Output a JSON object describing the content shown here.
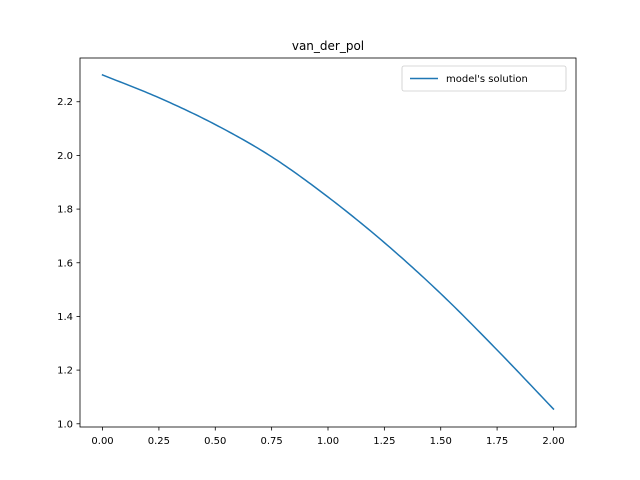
{
  "chart_data": {
    "type": "line",
    "title": "van_der_pol",
    "xlabel": "",
    "ylabel": "",
    "xlim": [
      -0.1,
      2.1
    ],
    "ylim": [
      0.988,
      2.363
    ],
    "xticks": [
      0.0,
      0.25,
      0.5,
      0.75,
      1.0,
      1.25,
      1.5,
      1.75,
      2.0
    ],
    "xtick_labels": [
      "0.00",
      "0.25",
      "0.50",
      "0.75",
      "1.00",
      "1.25",
      "1.50",
      "1.75",
      "2.00"
    ],
    "yticks": [
      1.0,
      1.2,
      1.4,
      1.6,
      1.8,
      2.0,
      2.2
    ],
    "ytick_labels": [
      "1.0",
      "1.2",
      "1.4",
      "1.6",
      "1.8",
      "2.0",
      "2.2"
    ],
    "grid": false,
    "legend_position": "top-right",
    "series": [
      {
        "name": "model's solution",
        "color": "#1f77b4",
        "x": [
          0.0,
          0.25,
          0.5,
          0.75,
          1.0,
          1.25,
          1.5,
          1.75,
          2.0
        ],
        "y": [
          2.3,
          2.215,
          2.115,
          1.995,
          1.845,
          1.675,
          1.485,
          1.275,
          1.055
        ]
      }
    ]
  }
}
